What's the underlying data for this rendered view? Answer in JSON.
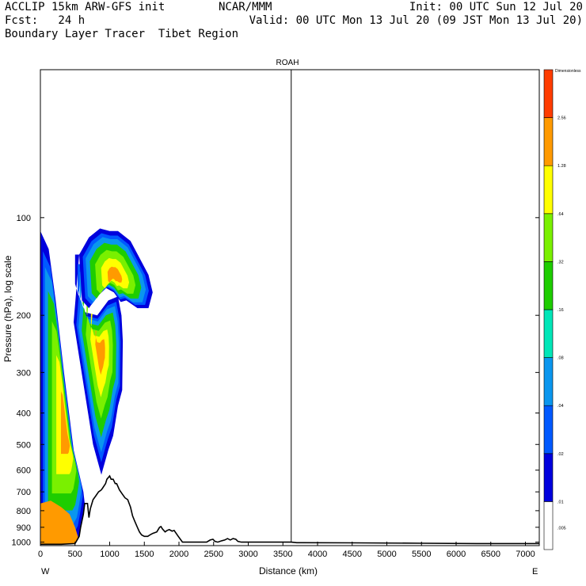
{
  "header": {
    "line1_left": "ACCLIP 15km ARW-GFS init",
    "line1_center": "NCAR/MMM",
    "line1_right": "Init: 00 UTC Sun 12 Jul 20",
    "line2_left": "Fcst:   24 h",
    "line2_right": "Valid: 00 UTC Mon 13 Jul 20 (09 JST Mon 13 Jul 20)",
    "line3_left": "Boundary Layer Tracer  Tibet Region"
  },
  "chart_data": {
    "type": "heatmap",
    "title": "ROAH",
    "xlabel": "Distance (km)",
    "ylabel": "Pressure (hPa), log scale",
    "x_ticks": [
      0,
      500,
      1000,
      1500,
      2000,
      2500,
      3000,
      3500,
      4000,
      4500,
      5000,
      5500,
      6000,
      6500,
      7000
    ],
    "y_ticks": [
      100,
      200,
      300,
      400,
      500,
      600,
      700,
      800,
      900,
      1000
    ],
    "xlim": [
      0,
      7200
    ],
    "ylim_log": [
      1025,
      35
    ],
    "x_start_label": "W",
    "x_end_label": "E",
    "marker_line_km": 3620,
    "colorbar": {
      "unit_label": "Dimensionless",
      "levels": [
        ".005",
        ".01",
        ".02",
        ".04",
        ".08",
        ".16",
        ".32",
        ".64",
        "1.28",
        "2.56"
      ],
      "colors": [
        "#ffffff",
        "#0000dd",
        "#0059ff",
        "#0a96ee",
        "#00e6b8",
        "#1ecd00",
        "#7af000",
        "#ffff00",
        "#ff9a00",
        "#ff3c00"
      ]
    },
    "terrain": [
      [
        0,
        1015
      ],
      [
        60,
        1015
      ],
      [
        300,
        1015
      ],
      [
        500,
        1010
      ],
      [
        560,
        960
      ],
      [
        580,
        900
      ],
      [
        600,
        860
      ],
      [
        620,
        820
      ],
      [
        640,
        760
      ],
      [
        680,
        760
      ],
      [
        700,
        840
      ],
      [
        720,
        790
      ],
      [
        760,
        740
      ],
      [
        800,
        720
      ],
      [
        840,
        700
      ],
      [
        880,
        690
      ],
      [
        900,
        680
      ],
      [
        940,
        660
      ],
      [
        960,
        640
      ],
      [
        1000,
        625
      ],
      [
        1020,
        640
      ],
      [
        1050,
        640
      ],
      [
        1080,
        660
      ],
      [
        1100,
        660
      ],
      [
        1140,
        690
      ],
      [
        1180,
        710
      ],
      [
        1220,
        730
      ],
      [
        1260,
        740
      ],
      [
        1300,
        780
      ],
      [
        1330,
        830
      ],
      [
        1360,
        860
      ],
      [
        1400,
        900
      ],
      [
        1430,
        930
      ],
      [
        1460,
        950
      ],
      [
        1500,
        960
      ],
      [
        1550,
        960
      ],
      [
        1580,
        950
      ],
      [
        1620,
        940
      ],
      [
        1680,
        930
      ],
      [
        1720,
        900
      ],
      [
        1740,
        895
      ],
      [
        1760,
        910
      ],
      [
        1800,
        930
      ],
      [
        1830,
        920
      ],
      [
        1860,
        915
      ],
      [
        1900,
        925
      ],
      [
        1930,
        920
      ],
      [
        1960,
        940
      ],
      [
        1990,
        960
      ],
      [
        2020,
        980
      ],
      [
        2050,
        1000
      ],
      [
        2150,
        1000
      ],
      [
        2300,
        1000
      ],
      [
        2400,
        1000
      ],
      [
        2450,
        985
      ],
      [
        2490,
        980
      ],
      [
        2520,
        995
      ],
      [
        2560,
        1000
      ],
      [
        2620,
        990
      ],
      [
        2660,
        985
      ],
      [
        2700,
        975
      ],
      [
        2740,
        985
      ],
      [
        2780,
        975
      ],
      [
        2820,
        980
      ],
      [
        2850,
        995
      ],
      [
        2900,
        1000
      ],
      [
        3000,
        1000
      ],
      [
        3620,
        1000
      ],
      [
        3700,
        1004
      ],
      [
        4500,
        1005
      ],
      [
        5500,
        1008
      ],
      [
        6300,
        1010
      ],
      [
        7200,
        1010
      ]
    ],
    "plumes": [
      {
        "name": "west-plume",
        "points": [
          [
            0,
            1015
          ],
          [
            0,
            110
          ],
          [
            120,
            125
          ],
          [
            220,
            180
          ],
          [
            340,
            300
          ],
          [
            480,
            520
          ],
          [
            620,
            700
          ],
          [
            640,
            760
          ],
          [
            600,
            860
          ],
          [
            560,
            960
          ],
          [
            500,
            1015
          ]
        ]
      },
      {
        "name": "central-stem",
        "points": [
          [
            480,
            210
          ],
          [
            760,
            500
          ],
          [
            880,
            620
          ],
          [
            980,
            520
          ],
          [
            1050,
            470
          ],
          [
            1120,
            380
          ],
          [
            1180,
            340
          ],
          [
            1190,
            240
          ],
          [
            1170,
            200
          ],
          [
            1120,
            175
          ],
          [
            980,
            180
          ],
          [
            820,
            200
          ],
          [
            620,
            195
          ],
          [
            500,
            160
          ],
          [
            500,
            130
          ],
          [
            560,
            130
          ]
        ]
      },
      {
        "name": "anvil",
        "points": [
          [
            560,
            130
          ],
          [
            700,
            115
          ],
          [
            860,
            108
          ],
          [
            1000,
            110
          ],
          [
            1120,
            110
          ],
          [
            1300,
            118
          ],
          [
            1560,
            150
          ],
          [
            1620,
            170
          ],
          [
            1560,
            190
          ],
          [
            1400,
            190
          ],
          [
            1240,
            180
          ],
          [
            1160,
            182
          ],
          [
            1060,
            170
          ],
          [
            950,
            165
          ],
          [
            820,
            175
          ],
          [
            700,
            190
          ],
          [
            600,
            180
          ]
        ]
      }
    ]
  }
}
